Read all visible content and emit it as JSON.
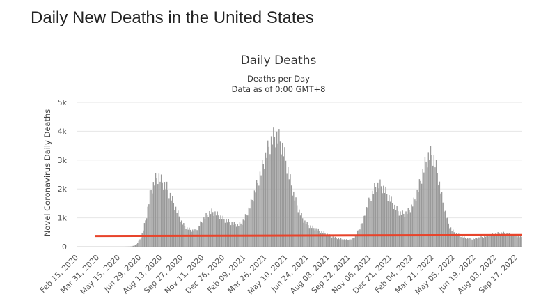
{
  "page": {
    "heading": "Daily New Deaths in the United States"
  },
  "chart_data": {
    "type": "bar",
    "title": "Daily Deaths",
    "subtitle": "Deaths per Day",
    "subtitle2": "Data as of 0:00 GMT+8",
    "ylabel": "Novel Coronavirus Daily Deaths",
    "xlabel": "",
    "ylim": [
      0,
      5000
    ],
    "yticks": [
      {
        "value": 0,
        "label": "0"
      },
      {
        "value": 1000,
        "label": "1k"
      },
      {
        "value": 2000,
        "label": "2k"
      },
      {
        "value": 3000,
        "label": "3k"
      },
      {
        "value": 4000,
        "label": "4k"
      },
      {
        "value": 5000,
        "label": "5k"
      }
    ],
    "xticks": [
      "Feb 15, 2020",
      "Mar 31, 2020",
      "May 15, 2020",
      "Jun 29, 2020",
      "Aug 13, 2020",
      "Sep 27, 2020",
      "Nov 11, 2020",
      "Dec 26, 2020",
      "Feb 09, 2021",
      "Mar 26, 2021",
      "May 10, 2021",
      "Jun 24, 2021",
      "Aug 08, 2021",
      "Sep 22, 2021",
      "Nov 06, 2021",
      "Dec 21, 2021",
      "Feb 04, 2022",
      "Mar 21, 2022",
      "May 05, 2022",
      "Jun 19, 2022",
      "Aug 03, 2022",
      "Sep 17, 2022"
    ],
    "x_start": "Feb 15, 2020",
    "x_end": "Sep 21, 2022",
    "bar_color": "#999999",
    "line_color": "#e8442b",
    "average_line": {
      "start": 370,
      "end": 405
    },
    "grid": true,
    "legend": "none",
    "series": [
      {
        "values": [
          0,
          0,
          0,
          0,
          0,
          0,
          0,
          0,
          0,
          0,
          0,
          0,
          0,
          0,
          0,
          0,
          0,
          0,
          0,
          0,
          0,
          0,
          0,
          0,
          0,
          0,
          0,
          0,
          0,
          0,
          0,
          0,
          0,
          0,
          0,
          0,
          0,
          0,
          0,
          0,
          0,
          0,
          0,
          1,
          2,
          3,
          5,
          8,
          13,
          20,
          30,
          45,
          65,
          95,
          140,
          200,
          280,
          380,
          500,
          650,
          820,
          1000,
          1200,
          1450,
          1700,
          1950,
          2150,
          2250,
          2350,
          2450,
          2550,
          2600,
          2650,
          2650,
          2600,
          2500,
          2450,
          2400,
          2350,
          2300,
          2250,
          2150,
          2050,
          1950,
          1850,
          1750,
          1650,
          1550,
          1450,
          1350,
          1250,
          1150,
          1050,
          950,
          880,
          820,
          780,
          740,
          700,
          680,
          660,
          640,
          630,
          620,
          610,
          600,
          650,
          700,
          760,
          820,
          880,
          940,
          1000,
          1060,
          1120,
          1170,
          1220,
          1260,
          1290,
          1310,
          1320,
          1320,
          1300,
          1280,
          1250,
          1220,
          1190,
          1160,
          1130,
          1100,
          1070,
          1040,
          1010,
          990,
          970,
          950,
          930,
          910,
          890,
          870,
          860,
          850,
          840,
          830,
          830,
          850,
          880,
          920,
          980,
          1050,
          1130,
          1220,
          1320,
          1420,
          1530,
          1650,
          1780,
          1910,
          2040,
          2170,
          2300,
          2440,
          2580,
          2720,
          2860,
          3000,
          3140,
          3280,
          3420,
          3550,
          3680,
          3800,
          3910,
          4010,
          4090,
          4150,
          4190,
          4200,
          4180,
          4140,
          4080,
          4000,
          3900,
          3770,
          3620,
          3450,
          3270,
          3080,
          2890,
          2700,
          2510,
          2330,
          2160,
          2000,
          1850,
          1710,
          1580,
          1460,
          1350,
          1250,
          1160,
          1080,
          1010,
          950,
          900,
          860,
          820,
          790,
          770,
          750,
          730,
          710,
          690,
          670,
          650,
          630,
          610,
          590,
          570,
          550,
          530,
          510,
          490,
          470,
          450,
          430,
          410,
          390,
          370,
          350,
          340,
          330,
          320,
          310,
          300,
          290,
          280,
          275,
          270,
          265,
          260,
          260,
          265,
          275,
          290,
          310,
          340,
          380,
          430,
          490,
          560,
          640,
          730,
          830,
          940,
          1060,
          1180,
          1310,
          1440,
          1570,
          1700,
          1820,
          1930,
          2030,
          2120,
          2200,
          2260,
          2300,
          2330,
          2340,
          2330,
          2300,
          2260,
          2210,
          2150,
          2080,
          2010,
          1940,
          1870,
          1800,
          1730,
          1660,
          1590,
          1520,
          1460,
          1400,
          1350,
          1310,
          1280,
          1260,
          1250,
          1250,
          1260,
          1280,
          1310,
          1350,
          1400,
          1460,
          1530,
          1610,
          1700,
          1800,
          1920,
          2050,
          2190,
          2340,
          2500,
          2660,
          2820,
          2970,
          3110,
          3240,
          3350,
          3430,
          3480,
          3500,
          3480,
          3420,
          3320,
          3180,
          3010,
          2810,
          2590,
          2360,
          2130,
          1900,
          1680,
          1480,
          1300,
          1140,
          1000,
          880,
          780,
          700,
          640,
          590,
          550,
          520,
          490,
          470,
          450,
          430,
          410,
          390,
          370,
          350,
          340,
          330,
          320,
          310,
          300,
          300,
          300,
          300,
          305,
          310,
          320,
          330,
          340,
          350,
          360,
          370,
          380,
          390,
          400,
          410,
          420,
          430,
          440,
          450,
          460,
          470,
          480,
          490,
          500,
          505,
          510,
          515,
          520,
          520,
          515,
          510,
          500,
          490,
          480,
          470,
          460,
          450,
          440,
          430,
          420,
          410,
          400,
          390,
          380,
          380,
          380
        ]
      }
    ]
  }
}
